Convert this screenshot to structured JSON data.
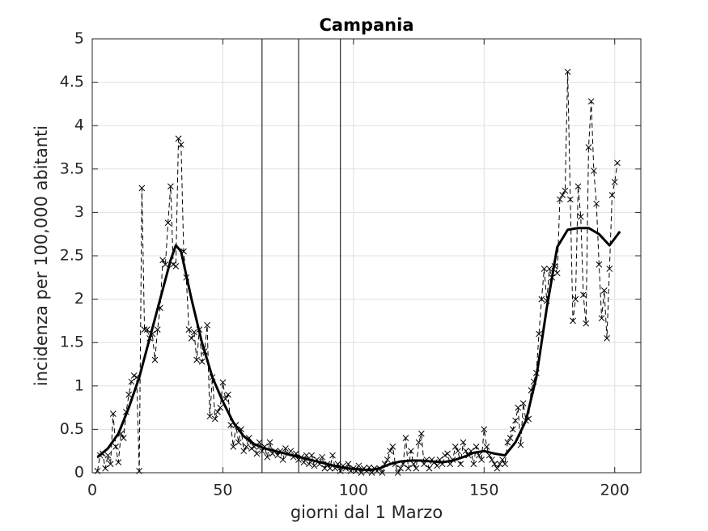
{
  "chart_data": {
    "type": "line",
    "title": "Campania",
    "xlabel": "giorni dal 1 Marzo",
    "ylabel": "incidenza per 100,000 abitanti",
    "xlim": [
      0,
      210
    ],
    "ylim": [
      0,
      5
    ],
    "xticks": [
      0,
      50,
      100,
      150,
      200
    ],
    "yticks": [
      0,
      0.5,
      1,
      1.5,
      2,
      2.5,
      3,
      3.5,
      4,
      4.5,
      5
    ],
    "grid": true,
    "vlines": [
      65,
      79,
      95
    ],
    "series": [
      {
        "color": "#000000",
        "style": "dashed",
        "marker": "x",
        "x": [
          2,
          3,
          4,
          5,
          6,
          7,
          8,
          9,
          10,
          11,
          12,
          13,
          14,
          15,
          16,
          17,
          18,
          19,
          20,
          21,
          22,
          23,
          24,
          25,
          26,
          27,
          28,
          29,
          30,
          31,
          32,
          33,
          34,
          35,
          36,
          37,
          38,
          39,
          40,
          41,
          42,
          43,
          44,
          45,
          46,
          47,
          48,
          49,
          50,
          51,
          52,
          53,
          54,
          55,
          56,
          57,
          58,
          59,
          60,
          61,
          62,
          63,
          64,
          65,
          66,
          67,
          68,
          69,
          70,
          71,
          72,
          73,
          74,
          75,
          76,
          77,
          78,
          79,
          80,
          81,
          82,
          83,
          84,
          85,
          86,
          87,
          88,
          89,
          90,
          91,
          92,
          93,
          94,
          95,
          96,
          97,
          98,
          99,
          100,
          101,
          102,
          103,
          104,
          105,
          106,
          107,
          108,
          109,
          110,
          111,
          112,
          113,
          114,
          115,
          116,
          117,
          118,
          119,
          120,
          121,
          122,
          123,
          124,
          125,
          126,
          127,
          128,
          129,
          130,
          131,
          132,
          133,
          134,
          135,
          136,
          137,
          138,
          139,
          140,
          141,
          142,
          143,
          144,
          145,
          146,
          147,
          148,
          149,
          150,
          151,
          152,
          153,
          154,
          155,
          156,
          157,
          158,
          159,
          160,
          161,
          162,
          163,
          164,
          165,
          166,
          167,
          168,
          169,
          170,
          171,
          172,
          173,
          174,
          175,
          176,
          177,
          178,
          179,
          180,
          181,
          182,
          183,
          184,
          185,
          186,
          187,
          188,
          189,
          190,
          191,
          192,
          193,
          194,
          195,
          196,
          197,
          198,
          199,
          200,
          201
        ],
        "values": [
          0.02,
          0.2,
          0.22,
          0.05,
          0.2,
          0.1,
          0.68,
          0.3,
          0.12,
          0.45,
          0.4,
          0.7,
          0.9,
          1.05,
          1.12,
          1.1,
          0.02,
          3.28,
          1.65,
          1.65,
          1.55,
          1.6,
          1.3,
          1.65,
          1.9,
          2.45,
          2.4,
          2.88,
          3.3,
          2.4,
          2.38,
          3.85,
          3.78,
          2.55,
          2.25,
          1.65,
          1.55,
          1.62,
          1.3,
          1.65,
          1.28,
          1.4,
          1.7,
          0.65,
          1.1,
          0.62,
          0.7,
          0.75,
          1.04,
          0.85,
          0.9,
          0.55,
          0.3,
          0.55,
          0.35,
          0.5,
          0.25,
          0.3,
          0.4,
          0.28,
          0.3,
          0.22,
          0.35,
          0.25,
          0.3,
          0.18,
          0.35,
          0.22,
          0.25,
          0.2,
          0.25,
          0.15,
          0.28,
          0.22,
          0.25,
          0.18,
          0.22,
          0.15,
          0.18,
          0.12,
          0.2,
          0.1,
          0.2,
          0.08,
          0.15,
          0.1,
          0.18,
          0.05,
          0.1,
          0.05,
          0.2,
          0.05,
          0.1,
          0.02,
          0.08,
          0.05,
          0.1,
          0.02,
          0.05,
          0.02,
          0.08,
          0,
          0.05,
          0.02,
          0.06,
          0,
          0.05,
          0.02,
          0.05,
          0,
          0.1,
          0.15,
          0.25,
          0.3,
          0.1,
          0,
          0.05,
          0.1,
          0.4,
          0.05,
          0.25,
          0.1,
          0.05,
          0.35,
          0.45,
          0.1,
          0.15,
          0.05,
          0.15,
          0.12,
          0.08,
          0.15,
          0.1,
          0.2,
          0.22,
          0.1,
          0.15,
          0.3,
          0.25,
          0.1,
          0.35,
          0.25,
          0.2,
          0.25,
          0.1,
          0.3,
          0.2,
          0.15,
          0.5,
          0.3,
          0.2,
          0.15,
          0.1,
          0.05,
          0.1,
          0.15,
          0.1,
          0.35,
          0.4,
          0.5,
          0.6,
          0.75,
          0.32,
          0.8,
          0.6,
          0.62,
          0.95,
          1.05,
          1.15,
          1.6,
          2.0,
          2.35,
          1.98,
          2.35,
          2.25,
          2.38,
          2.3,
          3.15,
          3.2,
          3.25,
          4.62,
          3.15,
          1.75,
          2.0,
          3.3,
          2.95,
          2.05,
          1.72,
          3.75,
          4.28,
          3.48,
          3.1,
          2.4,
          1.78,
          2.1,
          1.55,
          2.35,
          3.2,
          3.35,
          3.57
        ]
      },
      {
        "color": "#000000",
        "style": "solid",
        "width": 3,
        "x": [
          2,
          6,
          10,
          14,
          18,
          22,
          26,
          30,
          32,
          34,
          38,
          42,
          46,
          50,
          54,
          58,
          62,
          66,
          70,
          74,
          78,
          82,
          86,
          90,
          94,
          98,
          102,
          106,
          110,
          114,
          118,
          122,
          126,
          130,
          134,
          138,
          142,
          146,
          150,
          154,
          158,
          162,
          166,
          170,
          174,
          178,
          182,
          186,
          190,
          194,
          198,
          202
        ],
        "values": [
          0.18,
          0.28,
          0.45,
          0.75,
          1.1,
          1.55,
          2.0,
          2.45,
          2.62,
          2.55,
          2.0,
          1.5,
          1.1,
          0.82,
          0.58,
          0.42,
          0.33,
          0.28,
          0.25,
          0.22,
          0.19,
          0.16,
          0.13,
          0.1,
          0.07,
          0.05,
          0.04,
          0.03,
          0.05,
          0.1,
          0.13,
          0.14,
          0.14,
          0.13,
          0.12,
          0.14,
          0.18,
          0.23,
          0.25,
          0.22,
          0.2,
          0.35,
          0.6,
          1.1,
          1.9,
          2.6,
          2.8,
          2.82,
          2.82,
          2.75,
          2.62,
          2.78
        ]
      }
    ]
  }
}
